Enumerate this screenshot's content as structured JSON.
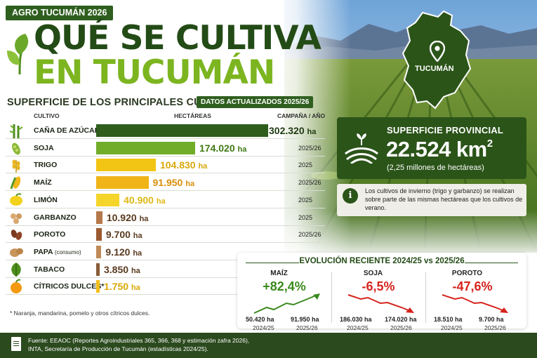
{
  "header": {
    "badge": "AGRO TUCUMÁN 2026",
    "title_line1": "QUÉ SE CULTIVA",
    "title_line2": "EN TUCUMÁN",
    "subtitle": "SUPERFICIE DE LOS PRINCIPALES CULTIVOS",
    "data_badge": "DATOS ACTUALIZADOS 2025/26"
  },
  "map": {
    "label": "TUCUMÁN",
    "icon": "map-pin-icon"
  },
  "table": {
    "columns": {
      "crop": "CULTIVO",
      "hectares": "HECTÁREAS",
      "campaign": "CAMPAÑA / AÑO"
    },
    "unit": "ha",
    "max_value": 302320,
    "rows": [
      {
        "name": "CAÑA DE AZÚCAR",
        "note": "",
        "value": 302320,
        "value_text": "302.320",
        "campaign": "",
        "color": "#2e5d1c",
        "val_color": "#1e3a12",
        "icon": "sugarcane-icon"
      },
      {
        "name": "SOJA",
        "note": "",
        "value": 174020,
        "value_text": "174.020",
        "campaign": "2025/26",
        "color": "#72ad2a",
        "val_color": "#3f7a14",
        "icon": "soybean-icon"
      },
      {
        "name": "TRIGO",
        "note": "",
        "value": 104830,
        "value_text": "104.830",
        "campaign": "2025",
        "color": "#f2c514",
        "val_color": "#d9a90a",
        "icon": "wheat-icon"
      },
      {
        "name": "MAÍZ",
        "note": "",
        "value": 91950,
        "value_text": "91.950",
        "campaign": "2025/26",
        "color": "#f0b418",
        "val_color": "#d98e0a",
        "icon": "corn-icon"
      },
      {
        "name": "LIMÓN",
        "note": "",
        "value": 40900,
        "value_text": "40.900",
        "campaign": "2025",
        "color": "#f5d52a",
        "val_color": "#e0b912",
        "icon": "lemon-icon"
      },
      {
        "name": "GARBANZO",
        "note": "",
        "value": 10920,
        "value_text": "10.920",
        "campaign": "2025",
        "color": "#b5784a",
        "val_color": "#5a3a1e",
        "icon": "chickpea-icon"
      },
      {
        "name": "POROTO",
        "note": "",
        "value": 9700,
        "value_text": "9.700",
        "campaign": "2025/26",
        "color": "#9c5a32",
        "val_color": "#5a3a1e",
        "icon": "bean-icon"
      },
      {
        "name": "PAPA",
        "note": "(consumo)",
        "value": 9120,
        "value_text": "9.120",
        "campaign": "",
        "color": "#c08a58",
        "val_color": "#5a3a1e",
        "icon": "potato-icon"
      },
      {
        "name": "TABACO",
        "note": "",
        "value": 3850,
        "value_text": "3.850",
        "campaign": "",
        "color": "#8a5c38",
        "val_color": "#5a3a1e",
        "icon": "tobacco-leaf-icon"
      },
      {
        "name": "CÍTRICOS DULCES*",
        "note": "",
        "value": 1750,
        "value_text": "1.750",
        "campaign": "",
        "color": "#f3c01c",
        "val_color": "#d9a90a",
        "icon": "orange-icon"
      }
    ],
    "footnote": "* Naranja, mandarina, pomelo y otros cítricos dulces."
  },
  "surface": {
    "label": "SUPERFICIE PROVINCIAL",
    "value": "22.524 km",
    "exponent": "2",
    "sub": "(2,25 millones de hectáreas)"
  },
  "info": {
    "text": "Los cultivos de invierno (trigo y garbanzo) se realizan sobre parte de las mismas hectáreas que los cultivos de verano."
  },
  "evolution": {
    "title": "EVOLUCIÓN RECIENTE 2024/25 vs 2025/26",
    "items": [
      {
        "name": "MAÍZ",
        "pct": "+82,4%",
        "trend": "up",
        "color": "#3a8a1e",
        "from": "50.420 ha",
        "to": "91.950 ha",
        "from_year": "2024/25",
        "to_year": "2025/26"
      },
      {
        "name": "SOJA",
        "pct": "-6,5%",
        "trend": "down",
        "color": "#d6231c",
        "from": "186.030 ha",
        "to": "174.020 ha",
        "from_year": "2024/25",
        "to_year": "2025/26"
      },
      {
        "name": "POROTO",
        "pct": "-47,6%",
        "trend": "down",
        "color": "#d6231c",
        "from": "18.510 ha",
        "to": "9.700 ha",
        "from_year": "2024/25",
        "to_year": "2025/26"
      }
    ]
  },
  "footer": {
    "line1": "Fuente: EEAOC (Reportes Agroindustriales 365, 366, 368 y estimación zafra 2026),",
    "line2": "INTA, Secretaría de Producción de Tucumán (estadísticas 2024/25)."
  }
}
